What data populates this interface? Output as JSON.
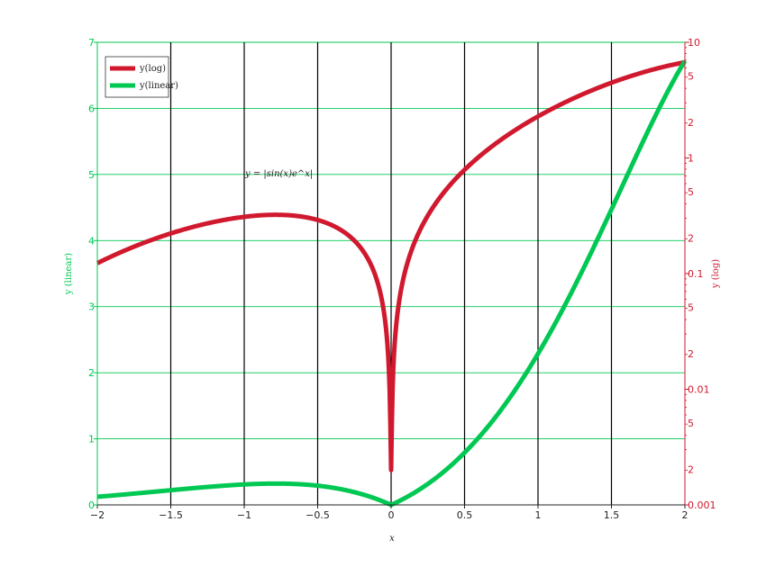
{
  "chart_data": {
    "type": "line",
    "title": "",
    "annotation": "y = |sin(x)e^x|",
    "xlabel": "x",
    "ylabel_left": "y (linear)",
    "ylabel_right": "y (log)",
    "xlim": [
      -2,
      2
    ],
    "ylim_left": [
      0,
      7
    ],
    "ylim_right": [
      0.001,
      10
    ],
    "right_axis_scale": "log",
    "x_ticks": [
      "−2",
      "−1.5",
      "−1",
      "−0.5",
      "0",
      "0.5",
      "1",
      "1.5",
      "2"
    ],
    "y_ticks_left": [
      "0",
      "1",
      "2",
      "3",
      "4",
      "5",
      "6",
      "7"
    ],
    "y_ticks_right_major": [
      "0.001",
      "0.01",
      "0.1",
      "1",
      "10"
    ],
    "y_ticks_right_minor": [
      "2",
      "5"
    ],
    "grid": {
      "vertical": true,
      "horizontal": true
    },
    "legend": {
      "placement": "top-left",
      "entries": [
        "y(log)",
        "y(linear)"
      ]
    },
    "colors": {
      "log": "#d0192e",
      "linear": "#00c853",
      "left_axis": "#00c853",
      "right_axis": "#d0192e",
      "vgrid": "#000000",
      "hgrid": "#00c853"
    },
    "series": [
      {
        "name": "y(log)",
        "axis": "right",
        "function": "abs(sin(x)*exp(x))",
        "x_range": [
          -2,
          2
        ]
      },
      {
        "name": "y(linear)",
        "axis": "left",
        "function": "abs(sin(x)*exp(x))",
        "x_range": [
          -2,
          2
        ]
      }
    ]
  }
}
